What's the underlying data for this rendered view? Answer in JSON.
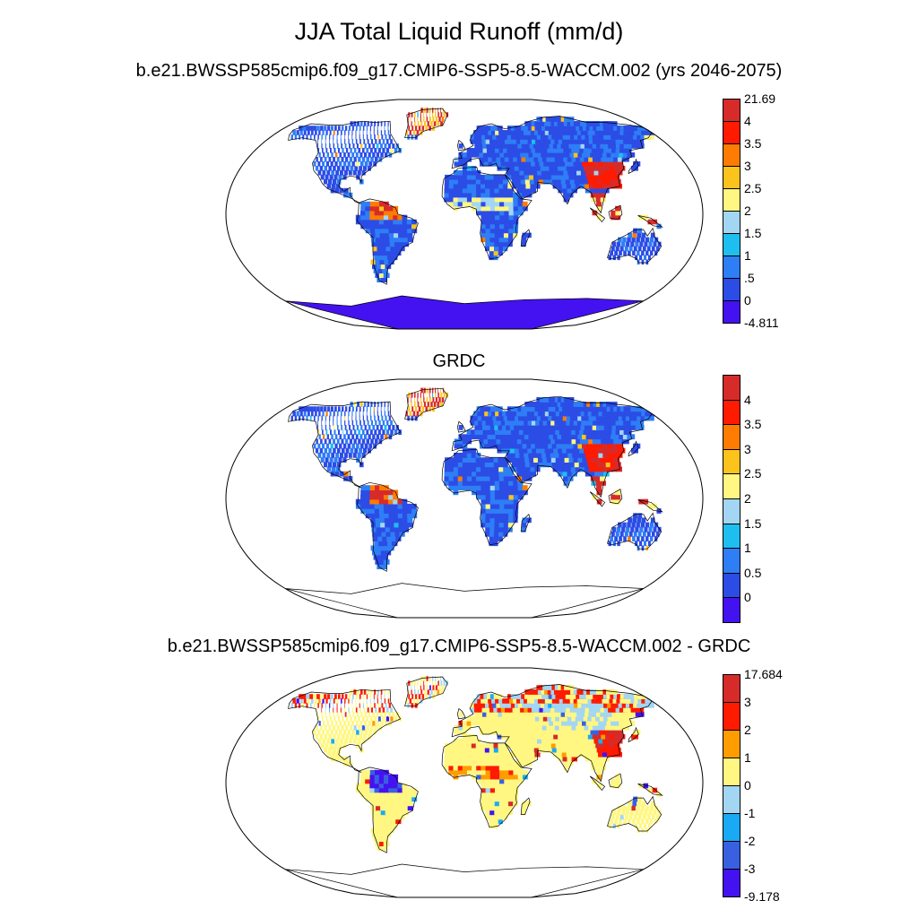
{
  "title": "JJA Total Liquid Runoff (mm/d)",
  "panels": [
    {
      "subtitle": "b.e21.BWSSP585cmip6.f09_g17.CMIP6-SSP5-8.5-WACCM.002 (yrs 2046-2075)",
      "colors": [
        "#4412f0",
        "#2c4ce6",
        "#2e7ef5",
        "#1ebef0",
        "#a3d6f2",
        "#fff781",
        "#fcc31c",
        "#fd7c01",
        "#fe1b00",
        "#d72b2a"
      ],
      "labels": [
        "-4.811",
        "0",
        ".5",
        "1",
        "1.5",
        "2",
        "2.5",
        "3",
        "3.5",
        "4",
        "21.69"
      ],
      "field": "model"
    },
    {
      "subtitle": "GRDC",
      "colors": [
        "#4412f0",
        "#2c4ce6",
        "#2e7ef5",
        "#1ebef0",
        "#a3d6f2",
        "#fff781",
        "#fcc31c",
        "#fd7c01",
        "#fe1b00",
        "#d72b2a"
      ],
      "labels": [
        "",
        "0",
        "0.5",
        "1",
        "1.5",
        "2",
        "2.5",
        "3",
        "3.5",
        "4",
        ""
      ],
      "field": "obs"
    },
    {
      "subtitle": "b.e21.BWSSP585cmip6.f09_g17.CMIP6-SSP5-8.5-WACCM.002 - GRDC",
      "colors": [
        "#4412f0",
        "#3a60e2",
        "#1aaaf5",
        "#a3d6f2",
        "#fff781",
        "#fe9c00",
        "#fe1b00",
        "#d72b2a"
      ],
      "labels": [
        "-9.178",
        "-3",
        "-2",
        "-1",
        "0",
        "1",
        "2",
        "3",
        "17.684"
      ],
      "field": "diff"
    }
  ]
}
